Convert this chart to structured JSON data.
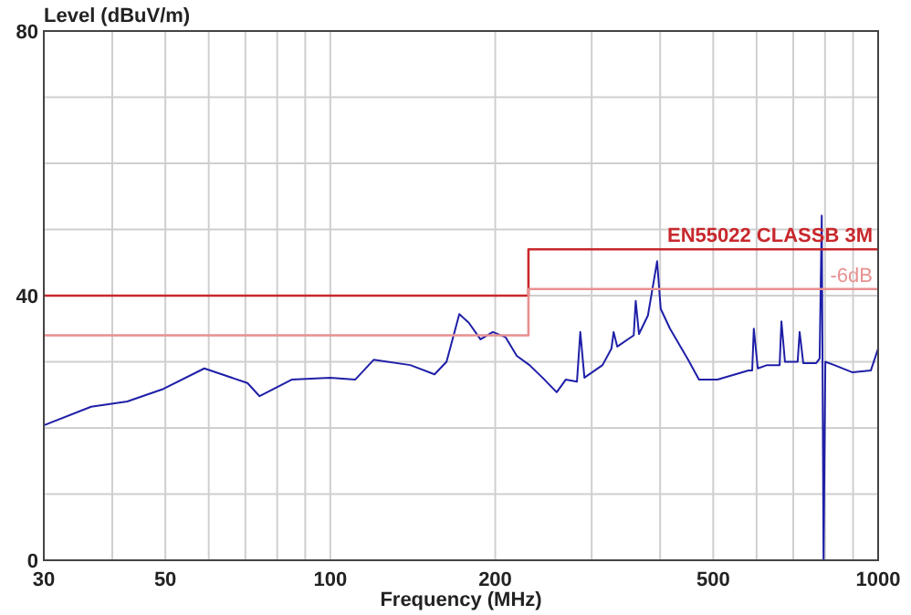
{
  "chart_data": {
    "type": "line",
    "xlabel": "Frequency (MHz)",
    "ylabel": "Level (dBuV/m)",
    "log": "x",
    "grid": true,
    "xlim": [
      30,
      1000
    ],
    "ylim": [
      0,
      80
    ],
    "xticks": [
      30,
      {
        "value": 40,
        "label": null
      },
      50,
      {
        "value": 60,
        "label": null
      },
      {
        "value": 70,
        "label": null
      },
      {
        "value": 80,
        "label": null
      },
      {
        "value": 90,
        "label": null
      },
      100,
      200,
      {
        "value": 300,
        "label": null
      },
      {
        "value": 400,
        "label": null
      },
      500,
      {
        "value": 600,
        "label": null
      },
      {
        "value": 700,
        "label": null
      },
      {
        "value": 800,
        "label": null
      },
      {
        "value": 900,
        "label": null
      },
      1000
    ],
    "yticks": [
      0,
      {
        "value": 10,
        "label": null
      },
      {
        "value": 20,
        "label": null
      },
      {
        "value": 30,
        "label": null
      },
      40,
      {
        "value": 50,
        "label": null
      },
      {
        "value": 60,
        "label": null
      },
      {
        "value": 70,
        "label": null
      },
      80
    ],
    "series": [
      {
        "color": "#1f1fa8",
        "x": [
          30,
          36.6,
          42.6,
          49.6,
          58.9,
          70.6,
          74.3,
          85,
          100,
          111,
          120,
          140,
          155,
          163,
          172,
          179,
          188,
          198,
          209,
          219,
          231,
          244,
          259,
          269,
          282,
          286,
          291,
          314,
          326,
          329,
          334,
          358,
          361,
          366,
          380,
          395,
          401,
          417,
          450,
          471,
          509,
          580,
          589,
          593,
          603,
          627,
          661,
          666,
          676,
          713,
          719,
          730,
          771,
          782,
          789,
          795,
          801,
          832,
          898,
          970,
          1000
        ],
        "values": [
          20.4,
          23.2,
          24,
          25.9,
          29,
          26.8,
          24.8,
          27.3,
          27.6,
          27.3,
          30.3,
          29.5,
          28.1,
          30,
          37.2,
          35.9,
          33.4,
          34.5,
          33.7,
          30.9,
          29.5,
          27.6,
          25.4,
          27.3,
          27,
          34.5,
          27.6,
          29.5,
          32,
          34.5,
          32.3,
          34,
          39.2,
          34.2,
          37,
          45.2,
          38,
          35,
          30.3,
          27.3,
          27.3,
          28.7,
          28.7,
          35,
          29,
          29.5,
          29.5,
          36.1,
          30,
          30,
          34.5,
          29.8,
          29.8,
          30.5,
          52.1,
          0,
          30,
          29.5,
          28.4,
          28.7,
          32
        ]
      },
      {
        "type": "step",
        "name": "EN55022 CLASSB 3M",
        "color": "#c8282d",
        "x": [
          30,
          230,
          1000
        ],
        "values": [
          40,
          47,
          47
        ]
      },
      {
        "type": "step",
        "name": "-6dB",
        "color": "#e89090",
        "x": [
          30,
          230,
          1000
        ],
        "values": [
          34,
          41,
          41
        ]
      }
    ]
  }
}
